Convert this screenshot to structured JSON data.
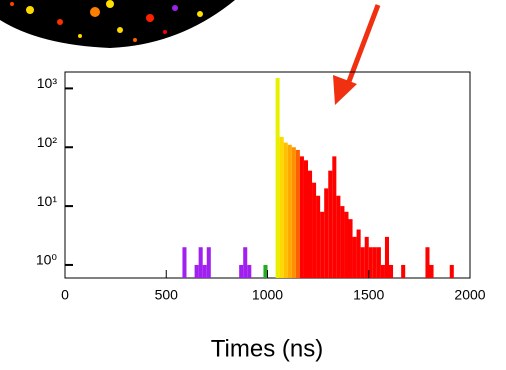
{
  "chart_data": {
    "type": "histogram",
    "xlabel": "Times (ns)",
    "bins": [
      580,
      600,
      620,
      640,
      660,
      680,
      700,
      720,
      740,
      760,
      780,
      800,
      820,
      840,
      860,
      880,
      900,
      920,
      940,
      960,
      980,
      1000,
      1020,
      1040,
      1060,
      1080,
      1100,
      1120,
      1140,
      1160,
      1180,
      1200,
      1220,
      1240,
      1260,
      1280,
      1300,
      1320,
      1340,
      1360,
      1380,
      1400,
      1420,
      1440,
      1460,
      1480,
      1500,
      1520,
      1540,
      1560,
      1580,
      1600,
      1620,
      1640,
      1660,
      1680,
      1700,
      1720,
      1740,
      1760,
      1780,
      1800,
      1820,
      1840,
      1860,
      1880,
      1900,
      1920,
      1940
    ],
    "counts": [
      2,
      0,
      0,
      1,
      2,
      1,
      2,
      0,
      0,
      0,
      0,
      0,
      0,
      0,
      1,
      2,
      1,
      0,
      0,
      0,
      1,
      0,
      0,
      1500,
      150,
      120,
      110,
      100,
      90,
      70,
      60,
      40,
      25,
      15,
      8,
      20,
      40,
      70,
      15,
      10,
      8,
      6,
      3,
      4,
      2,
      3,
      2,
      2,
      2,
      1,
      3,
      1,
      0,
      0,
      1,
      0,
      0,
      0,
      0,
      0,
      2,
      1,
      0,
      0,
      0,
      0,
      1,
      0
    ],
    "colors": [
      "#a020f0",
      "#a020f0",
      "#a020f0",
      "#a020f0",
      "#a020f0",
      "#a020f0",
      "#a020f0",
      "#a020f0",
      "#a020f0",
      "#a020f0",
      "#a020f0",
      "#a020f0",
      "#a020f0",
      "#a020f0",
      "#a020f0",
      "#a020f0",
      "#a020f0",
      "#a020f0",
      "#a020f0",
      "#a020f0",
      "#22aa22",
      "#22aa22",
      "#22aa22",
      "#e8f000",
      "#ffd800",
      "#ffc000",
      "#ffa800",
      "#ff9000",
      "#ff6000",
      "#ff0000",
      "#ff0000",
      "#ff0000",
      "#ff0000",
      "#ff0000",
      "#ff0000",
      "#ff0000",
      "#ff0000",
      "#ff0000",
      "#ff0000",
      "#ff0000",
      "#ff0000",
      "#ff0000",
      "#ff0000",
      "#ff0000",
      "#ff0000",
      "#ff0000",
      "#ff0000",
      "#ff0000",
      "#ff0000",
      "#ff0000",
      "#ff0000",
      "#ff0000",
      "#ff0000",
      "#ff0000",
      "#ff0000",
      "#ff0000",
      "#ff0000",
      "#ff0000",
      "#ff0000",
      "#ff0000",
      "#ff0000",
      "#ff0000",
      "#ff0000",
      "#ff0000",
      "#ff0000",
      "#ff0000",
      "#ff0000",
      "#ff0000"
    ],
    "xlim": [
      0,
      2000
    ],
    "xticks": [
      0,
      500,
      1000,
      1500,
      2000
    ],
    "ylim": [
      0.6,
      1900
    ],
    "log_y": true,
    "yticks": [
      {
        "value": 1,
        "label": "10⁰"
      },
      {
        "value": 10,
        "label": "10¹"
      },
      {
        "value": 100,
        "label": "10²"
      },
      {
        "value": 1000,
        "label": "10³"
      }
    ]
  }
}
